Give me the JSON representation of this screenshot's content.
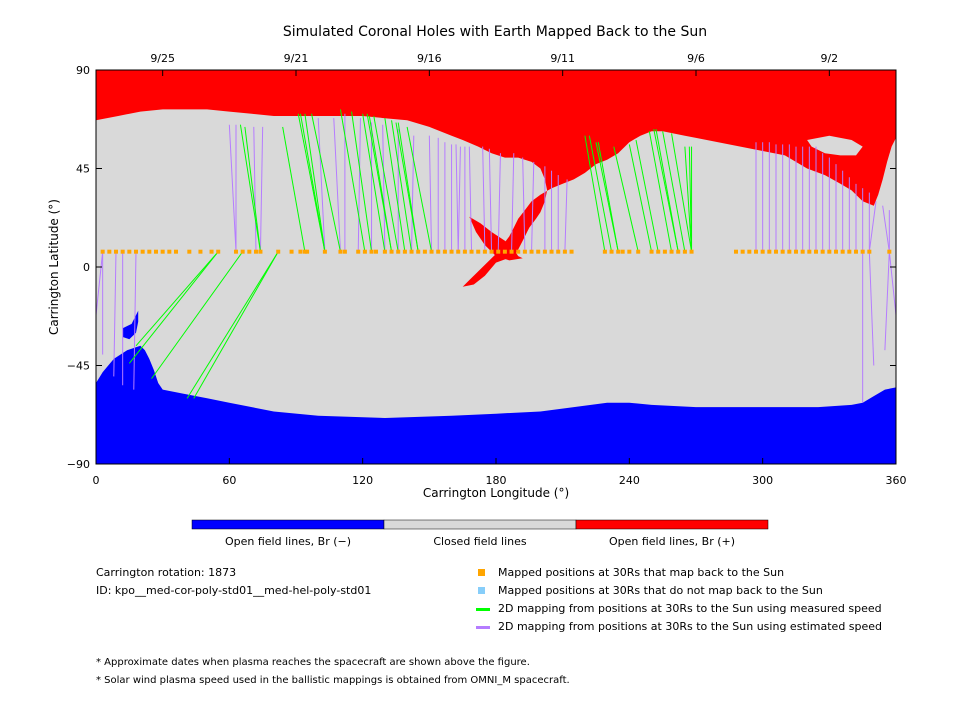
{
  "chart_data": {
    "type": "map",
    "title": "Simulated Coronal Holes with Earth Mapped Back to the Sun",
    "xlabel": "Carrington Longitude (°)",
    "ylabel": "Carrington Latitude (°)",
    "xlim": [
      0,
      360
    ],
    "ylim": [
      -90,
      90
    ],
    "xticks": [
      0,
      60,
      120,
      180,
      240,
      300,
      360
    ],
    "yticks": [
      -90,
      -45,
      0,
      45,
      90
    ],
    "date_ticks": [
      {
        "label": "9/25",
        "lon": 30
      },
      {
        "label": "9/21",
        "lon": 90
      },
      {
        "label": "9/16",
        "lon": 150
      },
      {
        "label": "9/11",
        "lon": 210
      },
      {
        "label": "9/6",
        "lon": 270
      },
      {
        "label": "9/2",
        "lon": 330
      }
    ],
    "mapped_latitude": 7,
    "colorbar": [
      {
        "label": "Open field lines, Br (−)",
        "color": "#0000ff"
      },
      {
        "label": "Closed field lines",
        "color": "#d9d9d9"
      },
      {
        "label": "Open field lines, Br (+)",
        "color": "#ff0000"
      }
    ],
    "north_hole_top": [
      [
        0,
        67
      ],
      [
        10,
        69
      ],
      [
        20,
        71
      ],
      [
        30,
        72
      ],
      [
        40,
        72
      ],
      [
        50,
        72
      ],
      [
        60,
        71
      ],
      [
        70,
        70
      ],
      [
        80,
        69
      ],
      [
        90,
        69
      ],
      [
        100,
        69
      ],
      [
        110,
        69
      ],
      [
        120,
        69
      ],
      [
        130,
        68
      ],
      [
        140,
        67
      ],
      [
        150,
        64
      ],
      [
        160,
        60
      ],
      [
        165,
        58
      ],
      [
        172,
        55
      ],
      [
        178,
        52
      ],
      [
        184,
        50
      ],
      [
        190,
        50
      ],
      [
        196,
        48
      ],
      [
        200,
        45
      ],
      [
        202,
        40
      ],
      [
        203,
        35
      ],
      [
        202,
        30
      ],
      [
        200,
        25
      ],
      [
        198,
        22
      ],
      [
        195,
        18
      ],
      [
        192,
        12
      ],
      [
        190,
        8
      ],
      [
        188,
        5
      ],
      [
        180,
        2
      ],
      [
        175,
        -4
      ],
      [
        170,
        -8
      ],
      [
        165,
        -9
      ],
      [
        168,
        -6
      ],
      [
        172,
        -2
      ],
      [
        176,
        2
      ],
      [
        180,
        6
      ],
      [
        183,
        10
      ],
      [
        186,
        14
      ],
      [
        188,
        18
      ],
      [
        190,
        22
      ],
      [
        193,
        26
      ],
      [
        196,
        30
      ],
      [
        200,
        33
      ],
      [
        205,
        36
      ],
      [
        210,
        38
      ],
      [
        215,
        40
      ],
      [
        220,
        43
      ],
      [
        225,
        47
      ],
      [
        230,
        49
      ],
      [
        235,
        52
      ],
      [
        240,
        57
      ],
      [
        245,
        60
      ],
      [
        250,
        62
      ],
      [
        255,
        62
      ],
      [
        260,
        61
      ],
      [
        265,
        60
      ],
      [
        270,
        59
      ],
      [
        280,
        57
      ],
      [
        290,
        55
      ],
      [
        300,
        53
      ],
      [
        310,
        51
      ],
      [
        320,
        45
      ],
      [
        328,
        42
      ],
      [
        335,
        38
      ],
      [
        340,
        35
      ],
      [
        345,
        30
      ],
      [
        350,
        28
      ],
      [
        352,
        33
      ],
      [
        354,
        40
      ],
      [
        356,
        48
      ],
      [
        358,
        55
      ],
      [
        360,
        59
      ],
      [
        360,
        90
      ],
      [
        0,
        90
      ]
    ],
    "north_hole_island": [
      [
        320,
        58
      ],
      [
        330,
        60
      ],
      [
        340,
        58
      ],
      [
        345,
        55
      ],
      [
        342,
        51
      ],
      [
        335,
        51
      ],
      [
        328,
        52
      ],
      [
        322,
        55
      ]
    ],
    "north_hole_wedge": [
      [
        168,
        23
      ],
      [
        173,
        20
      ],
      [
        178,
        16
      ],
      [
        184,
        12
      ],
      [
        188,
        8
      ],
      [
        190,
        5
      ],
      [
        192,
        4
      ],
      [
        186,
        3
      ],
      [
        180,
        5
      ],
      [
        175,
        10
      ],
      [
        171,
        16
      ]
    ],
    "south_hole": [
      [
        0,
        -53
      ],
      [
        3,
        -48
      ],
      [
        8,
        -42
      ],
      [
        14,
        -38
      ],
      [
        20,
        -36
      ],
      [
        22,
        -38
      ],
      [
        24,
        -42
      ],
      [
        26,
        -47
      ],
      [
        28,
        -53
      ],
      [
        30,
        -56
      ],
      [
        40,
        -58
      ],
      [
        50,
        -60
      ],
      [
        60,
        -62
      ],
      [
        80,
        -66
      ],
      [
        100,
        -68
      ],
      [
        130,
        -69
      ],
      [
        160,
        -68
      ],
      [
        180,
        -67
      ],
      [
        200,
        -66
      ],
      [
        215,
        -64
      ],
      [
        230,
        -62
      ],
      [
        240,
        -62
      ],
      [
        250,
        -63
      ],
      [
        270,
        -64
      ],
      [
        290,
        -64
      ],
      [
        310,
        -64
      ],
      [
        325,
        -64
      ],
      [
        340,
        -63
      ],
      [
        345,
        -62
      ],
      [
        350,
        -59
      ],
      [
        355,
        -56
      ],
      [
        360,
        -55
      ],
      [
        360,
        -90
      ],
      [
        0,
        -90
      ]
    ],
    "south_hole_finger": [
      [
        12,
        -28
      ],
      [
        16,
        -26
      ],
      [
        19,
        -20
      ],
      [
        19,
        -25
      ],
      [
        18,
        -30
      ],
      [
        15,
        -33
      ],
      [
        12,
        -32
      ]
    ],
    "mapped_points": [
      3,
      6,
      9,
      12,
      15,
      18,
      21,
      24,
      27,
      30,
      33,
      36,
      42,
      47,
      52,
      55,
      63,
      66,
      69,
      72,
      74,
      82,
      88,
      92,
      94,
      95,
      103,
      110,
      112,
      118,
      121,
      124,
      126,
      130,
      133,
      136,
      139,
      142,
      145,
      148,
      151,
      154,
      157,
      160,
      163,
      166,
      169,
      172,
      175,
      178,
      181,
      184,
      187,
      190,
      193,
      196,
      199,
      202,
      205,
      208,
      211,
      214,
      229,
      232,
      235,
      237,
      240,
      244,
      250,
      253,
      256,
      259,
      262,
      265,
      268,
      288,
      291,
      294,
      297,
      300,
      303,
      306,
      309,
      312,
      315,
      318,
      321,
      324,
      327,
      330,
      333,
      336,
      339,
      342,
      345,
      348,
      357
    ],
    "mappings_measured": [
      [
        15,
        -44
      ],
      [
        18,
        -36
      ],
      [
        25,
        -51
      ],
      [
        41,
        -60
      ],
      [
        44,
        -60
      ],
      [
        65,
        65
      ],
      [
        67,
        64
      ],
      [
        84,
        64
      ],
      [
        91,
        70
      ],
      [
        92,
        70
      ],
      [
        94,
        70
      ],
      [
        97,
        70
      ],
      [
        110,
        72
      ],
      [
        115,
        71
      ],
      [
        120,
        70
      ],
      [
        122,
        70
      ],
      [
        123,
        69
      ],
      [
        125,
        69
      ],
      [
        130,
        68
      ],
      [
        133,
        67
      ],
      [
        135,
        66
      ],
      [
        136,
        66
      ],
      [
        140,
        64
      ],
      [
        220,
        60
      ],
      [
        222,
        60
      ],
      [
        225,
        57
      ],
      [
        226,
        57
      ],
      [
        233,
        55
      ],
      [
        240,
        56
      ],
      [
        243,
        58
      ],
      [
        249,
        62
      ],
      [
        251,
        63
      ],
      [
        252,
        63
      ],
      [
        255,
        62
      ],
      [
        259,
        61
      ],
      [
        265,
        55
      ],
      [
        267,
        55
      ],
      [
        268,
        55
      ]
    ],
    "mappings_estimated": [
      [
        0,
        -22
      ],
      [
        3,
        -40
      ],
      [
        8,
        -50
      ],
      [
        12,
        -54
      ],
      [
        17,
        -56
      ],
      [
        60,
        65
      ],
      [
        63,
        65
      ],
      [
        71,
        64
      ],
      [
        75,
        64
      ],
      [
        100,
        68
      ],
      [
        107,
        68
      ],
      [
        112,
        70
      ],
      [
        119,
        68
      ],
      [
        124,
        66
      ],
      [
        129,
        65
      ],
      [
        136,
        63
      ],
      [
        143,
        60
      ],
      [
        150,
        60
      ],
      [
        154,
        59
      ],
      [
        157,
        57
      ],
      [
        160,
        56
      ],
      [
        162,
        56
      ],
      [
        164,
        55
      ],
      [
        166,
        55
      ],
      [
        168,
        55
      ],
      [
        174,
        55
      ],
      [
        177,
        54
      ],
      [
        182,
        52
      ],
      [
        188,
        52
      ],
      [
        192,
        50
      ],
      [
        197,
        48
      ],
      [
        202,
        46
      ],
      [
        205,
        44
      ],
      [
        208,
        42
      ],
      [
        212,
        40
      ],
      [
        297,
        57
      ],
      [
        300,
        57
      ],
      [
        303,
        57
      ],
      [
        306,
        56
      ],
      [
        309,
        56
      ],
      [
        312,
        56
      ],
      [
        315,
        55
      ],
      [
        318,
        55
      ],
      [
        321,
        55
      ],
      [
        324,
        55
      ],
      [
        327,
        52
      ],
      [
        330,
        50
      ],
      [
        333,
        47
      ],
      [
        336,
        44
      ],
      [
        339,
        41
      ],
      [
        342,
        38
      ],
      [
        345,
        36
      ],
      [
        348,
        34
      ],
      [
        351,
        30
      ],
      [
        354,
        28
      ],
      [
        357,
        26
      ],
      [
        345,
        -62
      ],
      [
        350,
        -45
      ],
      [
        355,
        -38
      ],
      [
        360,
        -22
      ]
    ],
    "info": {
      "rotation": "Carrington rotation: 1873",
      "id": "ID: kpo__med-cor-poly-std01__med-hel-poly-std01"
    },
    "legend": [
      {
        "label": "Mapped positions at 30Rs that map back to the Sun",
        "color": "#ffa500",
        "marker": "square"
      },
      {
        "label": "Mapped positions at 30Rs that do not map back to the Sun",
        "color": "#87cefa",
        "marker": "square"
      },
      {
        "label": "2D mapping from positions at 30Rs to the Sun using measured speed",
        "color": "#00ff00",
        "marker": "line"
      },
      {
        "label": "2D mapping from positions at 30Rs to the Sun using estimated speed",
        "color": "#b57cff",
        "marker": "line"
      }
    ],
    "notes": [
      "* Approximate dates when plasma reaches the spacecraft are shown above the figure.",
      "* Solar wind plasma speed used in the ballistic mappings is obtained from OMNI_M spacecraft."
    ]
  }
}
